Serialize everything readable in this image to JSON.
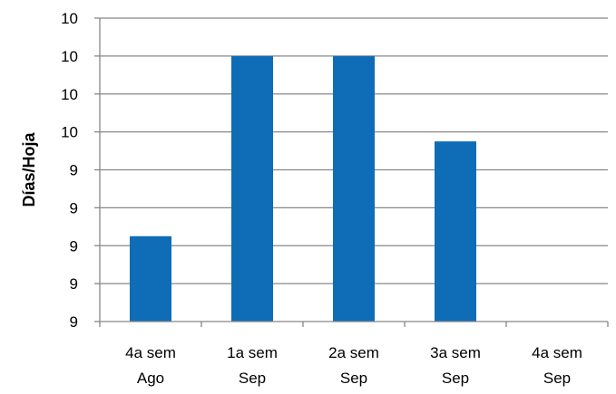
{
  "chart_data": {
    "type": "bar",
    "title": "",
    "xlabel": "",
    "ylabel": "Días/Hoja",
    "categories": [
      [
        "4a sem",
        "Ago"
      ],
      [
        "1a sem",
        "Sep"
      ],
      [
        "2a sem",
        "Sep"
      ],
      [
        "3a sem",
        "Sep"
      ],
      [
        "4a sem",
        "Sep"
      ]
    ],
    "values": [
      8.95,
      9.9,
      9.9,
      9.45,
      8.5
    ],
    "ylim": [
      8.5,
      10.1
    ],
    "yticks": [
      8.5,
      8.7,
      8.9,
      9.1,
      9.3,
      9.5,
      9.7,
      9.9,
      10.1
    ],
    "ytick_labels": [
      "9",
      "9",
      "9",
      "9",
      "9",
      "10",
      "10",
      "10",
      "10"
    ],
    "grid": true,
    "legend": "none",
    "colors": {
      "bar": "#0f6cb6",
      "grid": "#878787",
      "axis": "#878787"
    }
  }
}
